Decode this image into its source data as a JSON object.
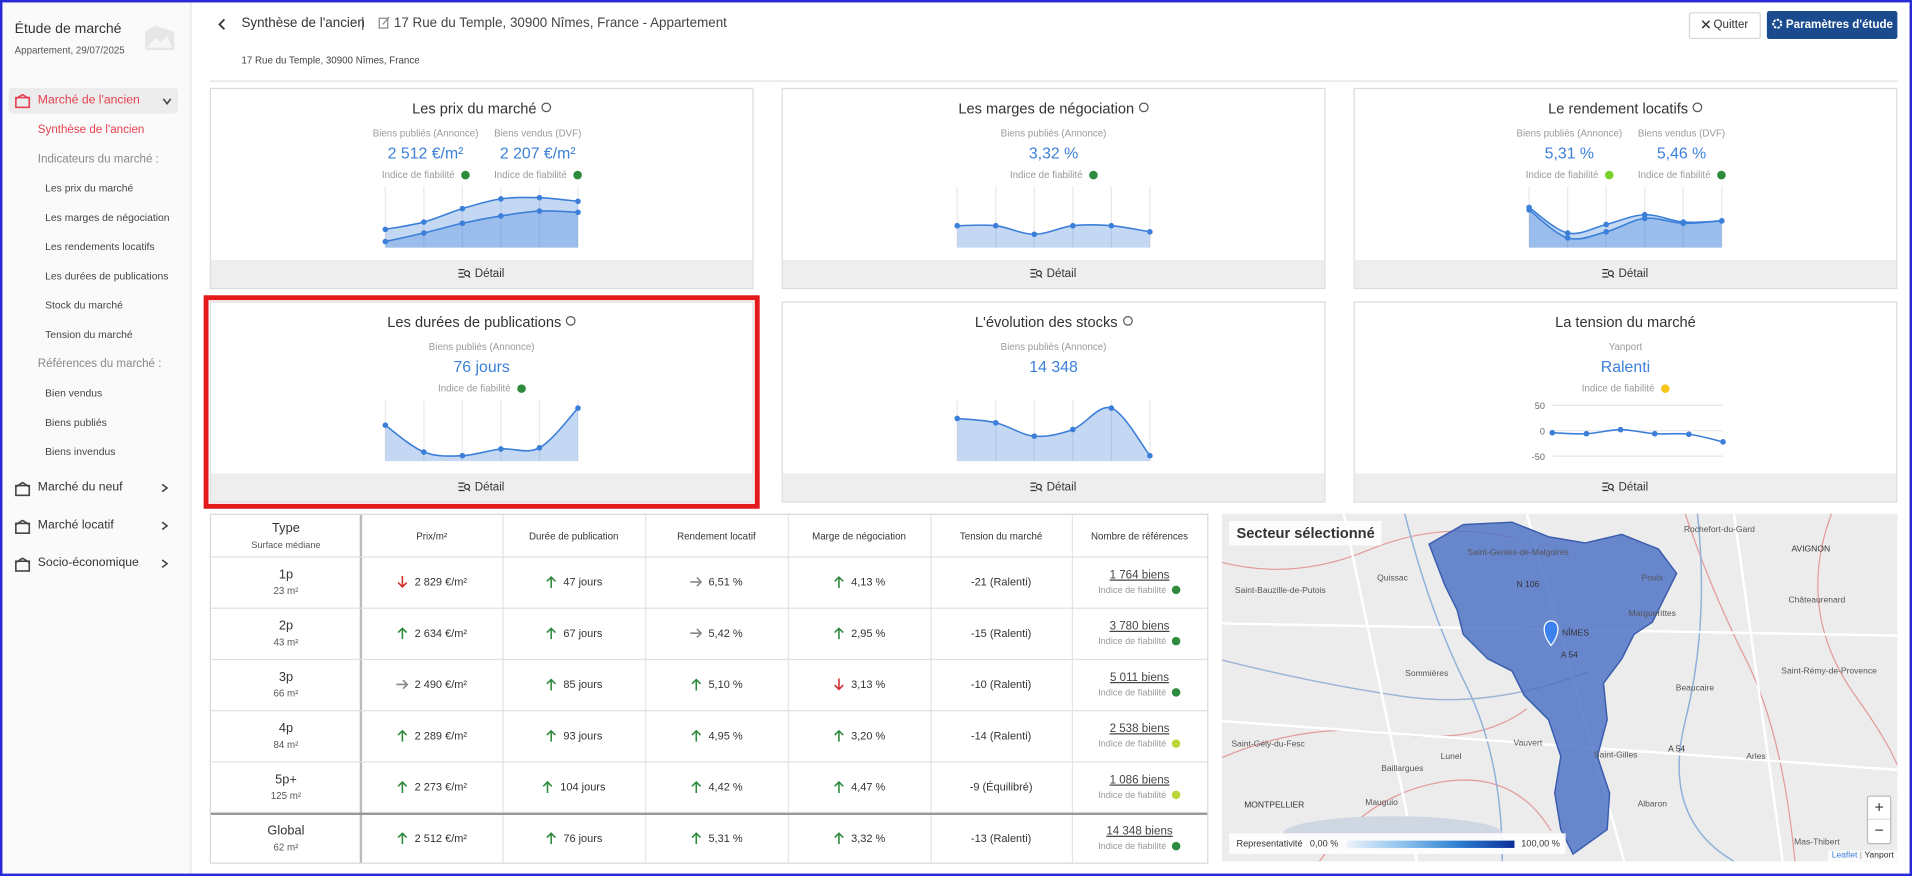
{
  "sidebar": {
    "title": "Étude de marché",
    "subtitle": "Appartement, 29/07/2025",
    "sections": [
      {
        "label": "Marché de l'ancien",
        "active": true,
        "items": [
          {
            "label": "Synthèse de l'ancien",
            "kind": "current"
          },
          {
            "label": "Indicateurs du marché :",
            "kind": "group"
          },
          {
            "label": "Les prix du marché",
            "kind": "sub"
          },
          {
            "label": "Les marges de négociation",
            "kind": "sub"
          },
          {
            "label": "Les rendements locatifs",
            "kind": "sub"
          },
          {
            "label": "Les durées de publications",
            "kind": "sub"
          },
          {
            "label": "Stock du marché",
            "kind": "sub"
          },
          {
            "label": "Tension du marché",
            "kind": "sub"
          },
          {
            "label": "Références du marché :",
            "kind": "group"
          },
          {
            "label": "Bien vendus",
            "kind": "sub"
          },
          {
            "label": "Biens publiés",
            "kind": "sub"
          },
          {
            "label": "Biens invendus",
            "kind": "sub"
          }
        ]
      },
      {
        "label": "Marché du neuf"
      },
      {
        "label": "Marché locatif"
      },
      {
        "label": "Socio-économique"
      }
    ]
  },
  "header": {
    "title": "Synthèse de l'ancien",
    "separator": "|",
    "address": "17 Rue du Temple, 30900 Nîmes, France - Appartement",
    "subaddress": "17 Rue du Temple, 30900 Nîmes, France",
    "quit": "Quitter",
    "settings": "Paramètres d'étude"
  },
  "cards": [
    {
      "title": "Les prix du marché",
      "info": true,
      "button": "Détail",
      "metrics": [
        {
          "label": "Biens publiés (Annonce)",
          "value": "2 512 €/m²",
          "reliability": "Indice de fiabilité",
          "dot": "#2e8b3e"
        },
        {
          "label": "Biens vendus (DVF)",
          "value": "2 207 €/m²",
          "reliability": "Indice de fiabilité",
          "dot": "#2e8b3e"
        }
      ],
      "spark": {
        "ylim": [
          0,
          100
        ],
        "area": true,
        "series": [
          {
            "color": "#3b7fd9",
            "values": [
              30,
              42,
              64,
              80,
              82,
              76
            ]
          },
          {
            "color": "#3b7fd9",
            "values": [
              10,
              24,
              40,
              52,
              60,
              58
            ]
          }
        ]
      }
    },
    {
      "title": "Les marges de négociation",
      "info": true,
      "button": "Détail",
      "metrics": [
        {
          "label": "Biens publiés (Annonce)",
          "value": "3,32 %",
          "reliability": "Indice de fiabilité",
          "dot": "#2e8b3e"
        }
      ],
      "spark": {
        "ylim": [
          0,
          100
        ],
        "area": true,
        "series": [
          {
            "color": "#3b7fd9",
            "values": [
              36,
              36,
              22,
              36,
              36,
              26
            ]
          }
        ]
      }
    },
    {
      "title": "Le rendement locatifs",
      "info": true,
      "button": "Détail",
      "metrics": [
        {
          "label": "Biens publiés (Annonce)",
          "value": "5,31 %",
          "reliability": "Indice de fiabilité",
          "dot": "#7bd12c"
        },
        {
          "label": "Biens vendus (DVF)",
          "value": "5,46 %",
          "reliability": "Indice de fiabilité",
          "dot": "#2e8b3e"
        }
      ],
      "spark": {
        "ylim": [
          0,
          100
        ],
        "area": true,
        "series": [
          {
            "color": "#3b7fd9",
            "values": [
              66,
              24,
              38,
              54,
              42,
              44
            ]
          },
          {
            "color": "#3b7fd9",
            "values": [
              62,
              16,
              26,
              48,
              40,
              44
            ]
          }
        ]
      }
    },
    {
      "title": "Les durées de publications",
      "info": true,
      "button": "Détail",
      "highlighted": true,
      "metrics": [
        {
          "label": "Biens publiés (Annonce)",
          "value": "76 jours",
          "reliability": "Indice de fiabilité",
          "dot": "#2e8b3e"
        }
      ],
      "spark": {
        "ylim": [
          0,
          100
        ],
        "area": true,
        "series": [
          {
            "color": "#3b7fd9",
            "values": [
              59,
              15,
              9,
              20,
              22,
              87
            ]
          }
        ]
      }
    },
    {
      "title": "L'évolution des stocks",
      "info": true,
      "button": "Détail",
      "metrics": [
        {
          "label": "Biens publiés (Annonce)",
          "value": "14 348"
        }
      ],
      "spark": {
        "ylim": [
          0,
          100
        ],
        "area": true,
        "series": [
          {
            "color": "#3b7fd9",
            "values": [
              70,
              63,
              41,
              52,
              87,
              9
            ]
          }
        ]
      }
    },
    {
      "title": "La tension du marché",
      "info": false,
      "button": "Détail",
      "metrics": [
        {
          "label": "Yanport",
          "value": "Ralenti",
          "reliability": "Indice de fiabilité",
          "dot": "#f5c518"
        }
      ],
      "spark": {
        "ylim": [
          -60,
          60
        ],
        "yticks": [
          50,
          0,
          -50
        ],
        "area": false,
        "series": [
          {
            "color": "#3b7fd9",
            "values": [
              -4,
              -6,
              2,
              -6,
              -7,
              -22
            ]
          }
        ]
      }
    }
  ],
  "table": {
    "head_type": "Type",
    "head_surface": "Surface médiane",
    "columns": [
      "Prix/m²",
      "Durée de publication",
      "Rendement locatif",
      "Marge de négociation",
      "Tension du marché",
      "Nombre de références"
    ],
    "rows": [
      {
        "type": "1p",
        "surface": "23 m²",
        "cells": [
          {
            "trend": "down",
            "text": "2 829 €/m²"
          },
          {
            "trend": "up",
            "text": "47 jours"
          },
          {
            "trend": "flat",
            "text": "6,51 %"
          },
          {
            "trend": "up",
            "text": "4,13 %"
          }
        ],
        "tension": "-21 (Ralenti)",
        "refs": "1 764 biens",
        "reliability": "Indice de fiabilité",
        "dot": "#2e8b3e"
      },
      {
        "type": "2p",
        "surface": "43 m²",
        "cells": [
          {
            "trend": "up",
            "text": "2 634 €/m²"
          },
          {
            "trend": "up",
            "text": "67 jours"
          },
          {
            "trend": "flat",
            "text": "5,42 %"
          },
          {
            "trend": "up",
            "text": "2,95 %"
          }
        ],
        "tension": "-15 (Ralenti)",
        "refs": "3 780 biens",
        "reliability": "Indice de fiabilité",
        "dot": "#2e8b3e"
      },
      {
        "type": "3p",
        "surface": "66 m²",
        "cells": [
          {
            "trend": "flat",
            "text": "2 490 €/m²"
          },
          {
            "trend": "up",
            "text": "85 jours"
          },
          {
            "trend": "up",
            "text": "5,10 %"
          },
          {
            "trend": "down",
            "text": "3,13 %"
          }
        ],
        "tension": "-10 (Ralenti)",
        "refs": "5 011 biens",
        "reliability": "Indice de fiabilité",
        "dot": "#2e8b3e"
      },
      {
        "type": "4p",
        "surface": "84 m²",
        "cells": [
          {
            "trend": "up",
            "text": "2 289 €/m²"
          },
          {
            "trend": "up",
            "text": "93 jours"
          },
          {
            "trend": "up",
            "text": "4,95 %"
          },
          {
            "trend": "up",
            "text": "3,20 %"
          }
        ],
        "tension": "-14 (Ralenti)",
        "refs": "2 538 biens",
        "reliability": "Indice de fiabilité",
        "dot": "#b9d63a"
      },
      {
        "type": "5p+",
        "surface": "125 m²",
        "cells": [
          {
            "trend": "up",
            "text": "2 273 €/m²"
          },
          {
            "trend": "up",
            "text": "104 jours"
          },
          {
            "trend": "up",
            "text": "4,42 %"
          },
          {
            "trend": "up",
            "text": "4,47 %"
          }
        ],
        "tension": "-9 (Équilibré)",
        "refs": "1 086 biens",
        "reliability": "Indice de fiabilité",
        "dot": "#b9d63a"
      },
      {
        "type": "Global",
        "surface": "62 m²",
        "cells": [
          {
            "trend": "up",
            "text": "2 512 €/m²"
          },
          {
            "trend": "up",
            "text": "76 jours"
          },
          {
            "trend": "up",
            "text": "5,31 %"
          },
          {
            "trend": "up",
            "text": "3,32 %"
          }
        ],
        "tension": "-13 (Ralenti)",
        "refs": "14 348 biens",
        "reliability": "Indice de fiabilité",
        "dot": "#2e8b3e"
      }
    ]
  },
  "map": {
    "title": "Secteur sélectionné",
    "places": [
      {
        "label": "Saint-Geniès-de-Malgoirès",
        "x": 243,
        "y": 34
      },
      {
        "label": "Rochefort-du-Gard",
        "x": 408,
        "y": 15
      },
      {
        "label": "AVIGNON",
        "x": 483,
        "y": 31
      },
      {
        "label": "Saint-Bauzille-de-Putois",
        "x": 48,
        "y": 65
      },
      {
        "label": "Quissac",
        "x": 140,
        "y": 55
      },
      {
        "label": "Poulx",
        "x": 353,
        "y": 55
      },
      {
        "label": "Châteaurenard",
        "x": 488,
        "y": 73
      },
      {
        "label": "N 106",
        "x": 251,
        "y": 60
      },
      {
        "label": "NÎMES",
        "x": 290,
        "y": 100
      },
      {
        "label": "Marguerittes",
        "x": 353,
        "y": 84
      },
      {
        "label": "A 54",
        "x": 285,
        "y": 118
      },
      {
        "label": "Sommières",
        "x": 168,
        "y": 133
      },
      {
        "label": "Beaucaire",
        "x": 388,
        "y": 145
      },
      {
        "label": "Saint-Rémy-de-Provence",
        "x": 498,
        "y": 131
      },
      {
        "label": "Saint-Gély-du-Fesc",
        "x": 38,
        "y": 191
      },
      {
        "label": "Vauvert",
        "x": 251,
        "y": 190
      },
      {
        "label": "A 54",
        "x": 373,
        "y": 195
      },
      {
        "label": "Lunel",
        "x": 188,
        "y": 201
      },
      {
        "label": "Saint-Gilles",
        "x": 323,
        "y": 200
      },
      {
        "label": "Arles",
        "x": 438,
        "y": 201
      },
      {
        "label": "Baillargues",
        "x": 148,
        "y": 211
      },
      {
        "label": "MONTPELLIER",
        "x": 43,
        "y": 241
      },
      {
        "label": "Mauguio",
        "x": 131,
        "y": 239
      },
      {
        "label": "Albaron",
        "x": 353,
        "y": 240
      },
      {
        "label": "Mas-Thibert",
        "x": 488,
        "y": 271
      }
    ],
    "legend_title": "Representativité",
    "legend_min": "0,00 %",
    "legend_max": "100,00 %",
    "zoom_in": "+",
    "zoom_out": "−",
    "attribution_leaflet": "Leaflet",
    "attribution_sep": "|",
    "attribution_yanport": "Yanport"
  }
}
